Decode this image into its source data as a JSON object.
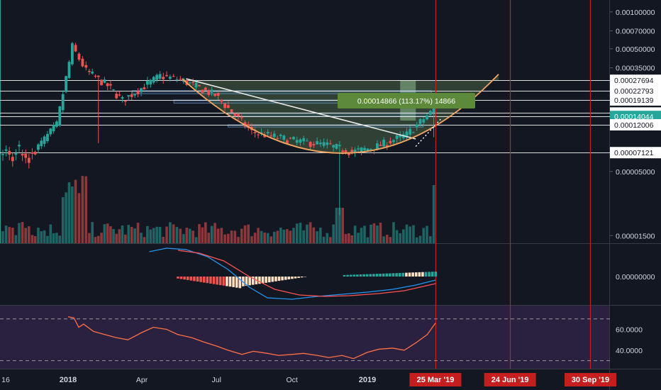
{
  "chart_data": [
    {
      "type": "candlestick",
      "pane": "price",
      "y_scale": "log",
      "ylim": [
        1.3e-05,
        0.00125
      ],
      "y_ticks": [
        "0.00100000",
        "0.00070000",
        "0.00050000",
        "0.00035000",
        "0.00027694",
        "0.00022793",
        "0.00019139",
        "0.00014985",
        "0.00014044",
        "0.00012006",
        "0.00007121",
        "0.00005000",
        "0.00001500"
      ],
      "y_tick_values": [
        0.001,
        0.0007,
        0.0005,
        0.00035,
        0.00027694,
        0.00022793,
        0.00019139,
        0.00014985,
        0.00014044,
        0.00012006,
        7.121e-05,
        5e-05,
        1.5e-05
      ],
      "x_labels": [
        "16",
        "2018",
        "Apr",
        "Jul",
        "Oct",
        "2019",
        "25 Mar '19",
        "24 Jun '19",
        "30 Sep '19"
      ],
      "horizontal_levels": [
        {
          "value": 0.00027694,
          "label": "0.00027694"
        },
        {
          "value": 0.00022793,
          "label": "0.00022793"
        },
        {
          "value": 0.00019139,
          "label": "0.00019139"
        },
        {
          "value": 0.00014985,
          "label": "0.00014985"
        },
        {
          "value": 0.00014044,
          "label": "0.00014044",
          "highlight": true
        },
        {
          "value": 0.00012006,
          "label": "0.00012006"
        },
        {
          "value": 7.121e-05,
          "label": "0.00007121"
        }
      ],
      "measure_label": "0.00014866 (113.17%) 14866",
      "price_segments": [
        {
          "from": "2017-11-20",
          "to": "2017-12-20",
          "start": 7e-05,
          "end": 0.00012
        },
        {
          "from": "2017-12-20",
          "to": "2018-01-08",
          "start": 0.00012,
          "end": 0.00052
        },
        {
          "from": "2018-01-08",
          "to": "2018-01-25",
          "start": 0.00052,
          "end": 0.00033
        },
        {
          "from": "2018-01-25",
          "to": "2018-02-20",
          "start": 0.00033,
          "end": 0.00025
        },
        {
          "from": "2018-02-20",
          "to": "2018-03-10",
          "start": 0.00025,
          "end": 0.00019
        },
        {
          "from": "2018-03-10",
          "to": "2018-04-25",
          "start": 0.00019,
          "end": 0.0003
        },
        {
          "from": "2018-04-25",
          "to": "2018-05-20",
          "start": 0.0003,
          "end": 0.00028
        },
        {
          "from": "2018-05-20",
          "to": "2018-07-01",
          "start": 0.00028,
          "end": 0.00021
        },
        {
          "from": "2018-07-01",
          "to": "2018-08-15",
          "start": 0.00021,
          "end": 0.000105
        },
        {
          "from": "2018-08-15",
          "to": "2018-10-01",
          "start": 0.000105,
          "end": 9e-05
        },
        {
          "from": "2018-10-01",
          "to": "2018-11-15",
          "start": 9e-05,
          "end": 8.2e-05
        },
        {
          "from": "2018-11-15",
          "to": "2018-12-15",
          "start": 8.2e-05,
          "end": 7.2e-05
        },
        {
          "from": "2018-12-15",
          "to": "2019-01-15",
          "start": 7.2e-05,
          "end": 8e-05
        },
        {
          "from": "2019-01-15",
          "to": "2019-02-20",
          "start": 8e-05,
          "end": 0.0001
        },
        {
          "from": "2019-02-20",
          "to": "2019-03-25",
          "start": 0.0001,
          "end": 0.00016
        }
      ],
      "annotations": {
        "rounding_bottom_curve": true,
        "descending_trendline": {
          "from": [
            "2018-05-25",
            0.000285
          ],
          "to": [
            "2019-03-01",
            9.2e-05
          ]
        },
        "vertical_markers": [
          "2019-03-25",
          "2019-06-24",
          "2019-09-30"
        ]
      }
    },
    {
      "type": "histogram",
      "pane": "macd",
      "y_ticks": [
        "0.00000000"
      ],
      "y_tick_values": [
        0
      ]
    },
    {
      "type": "line",
      "pane": "rsi",
      "y_ticks": [
        "60.0000",
        "40.0000"
      ],
      "y_tick_values": [
        60,
        40
      ],
      "band": [
        30,
        70
      ],
      "points": [
        [
          "2018-01-01",
          72
        ],
        [
          "2018-01-08",
          71
        ],
        [
          "2018-01-14",
          62
        ],
        [
          "2018-01-20",
          65
        ],
        [
          "2018-02-01",
          58
        ],
        [
          "2018-02-15",
          55
        ],
        [
          "2018-03-01",
          52
        ],
        [
          "2018-03-15",
          50
        ],
        [
          "2018-04-01",
          57
        ],
        [
          "2018-04-15",
          62
        ],
        [
          "2018-05-01",
          60
        ],
        [
          "2018-05-15",
          55
        ],
        [
          "2018-06-01",
          52
        ],
        [
          "2018-06-15",
          48
        ],
        [
          "2018-07-01",
          44
        ],
        [
          "2018-07-15",
          40
        ],
        [
          "2018-08-01",
          36
        ],
        [
          "2018-08-15",
          39
        ],
        [
          "2018-09-01",
          37
        ],
        [
          "2018-09-15",
          35
        ],
        [
          "2018-10-01",
          36
        ],
        [
          "2018-10-15",
          37
        ],
        [
          "2018-11-01",
          35
        ],
        [
          "2018-11-15",
          33
        ],
        [
          "2018-12-01",
          35
        ],
        [
          "2018-12-15",
          32
        ],
        [
          "2019-01-01",
          38
        ],
        [
          "2019-01-15",
          41
        ],
        [
          "2019-02-01",
          42
        ],
        [
          "2019-02-15",
          40
        ],
        [
          "2019-03-01",
          47
        ],
        [
          "2019-03-15",
          55
        ],
        [
          "2019-03-25",
          66
        ]
      ]
    }
  ],
  "colors": {
    "background": "#131722",
    "up": "#26a69a",
    "down": "#ef5350",
    "level_line": "#ffffff",
    "level_fill": "#4a7fb0",
    "curve": "#f4a460",
    "marker": "#c41e1e",
    "measure_box": "#5c8a3a",
    "rsi_line": "#ff7043",
    "rsi_bg": "#2a2140",
    "macd_fast": "#2196f3",
    "macd_slow": "#ff5252",
    "hist_pos": "#26a69a",
    "hist_neg": "#ef5350",
    "hist_light": "#ffe0c2"
  },
  "icons": []
}
